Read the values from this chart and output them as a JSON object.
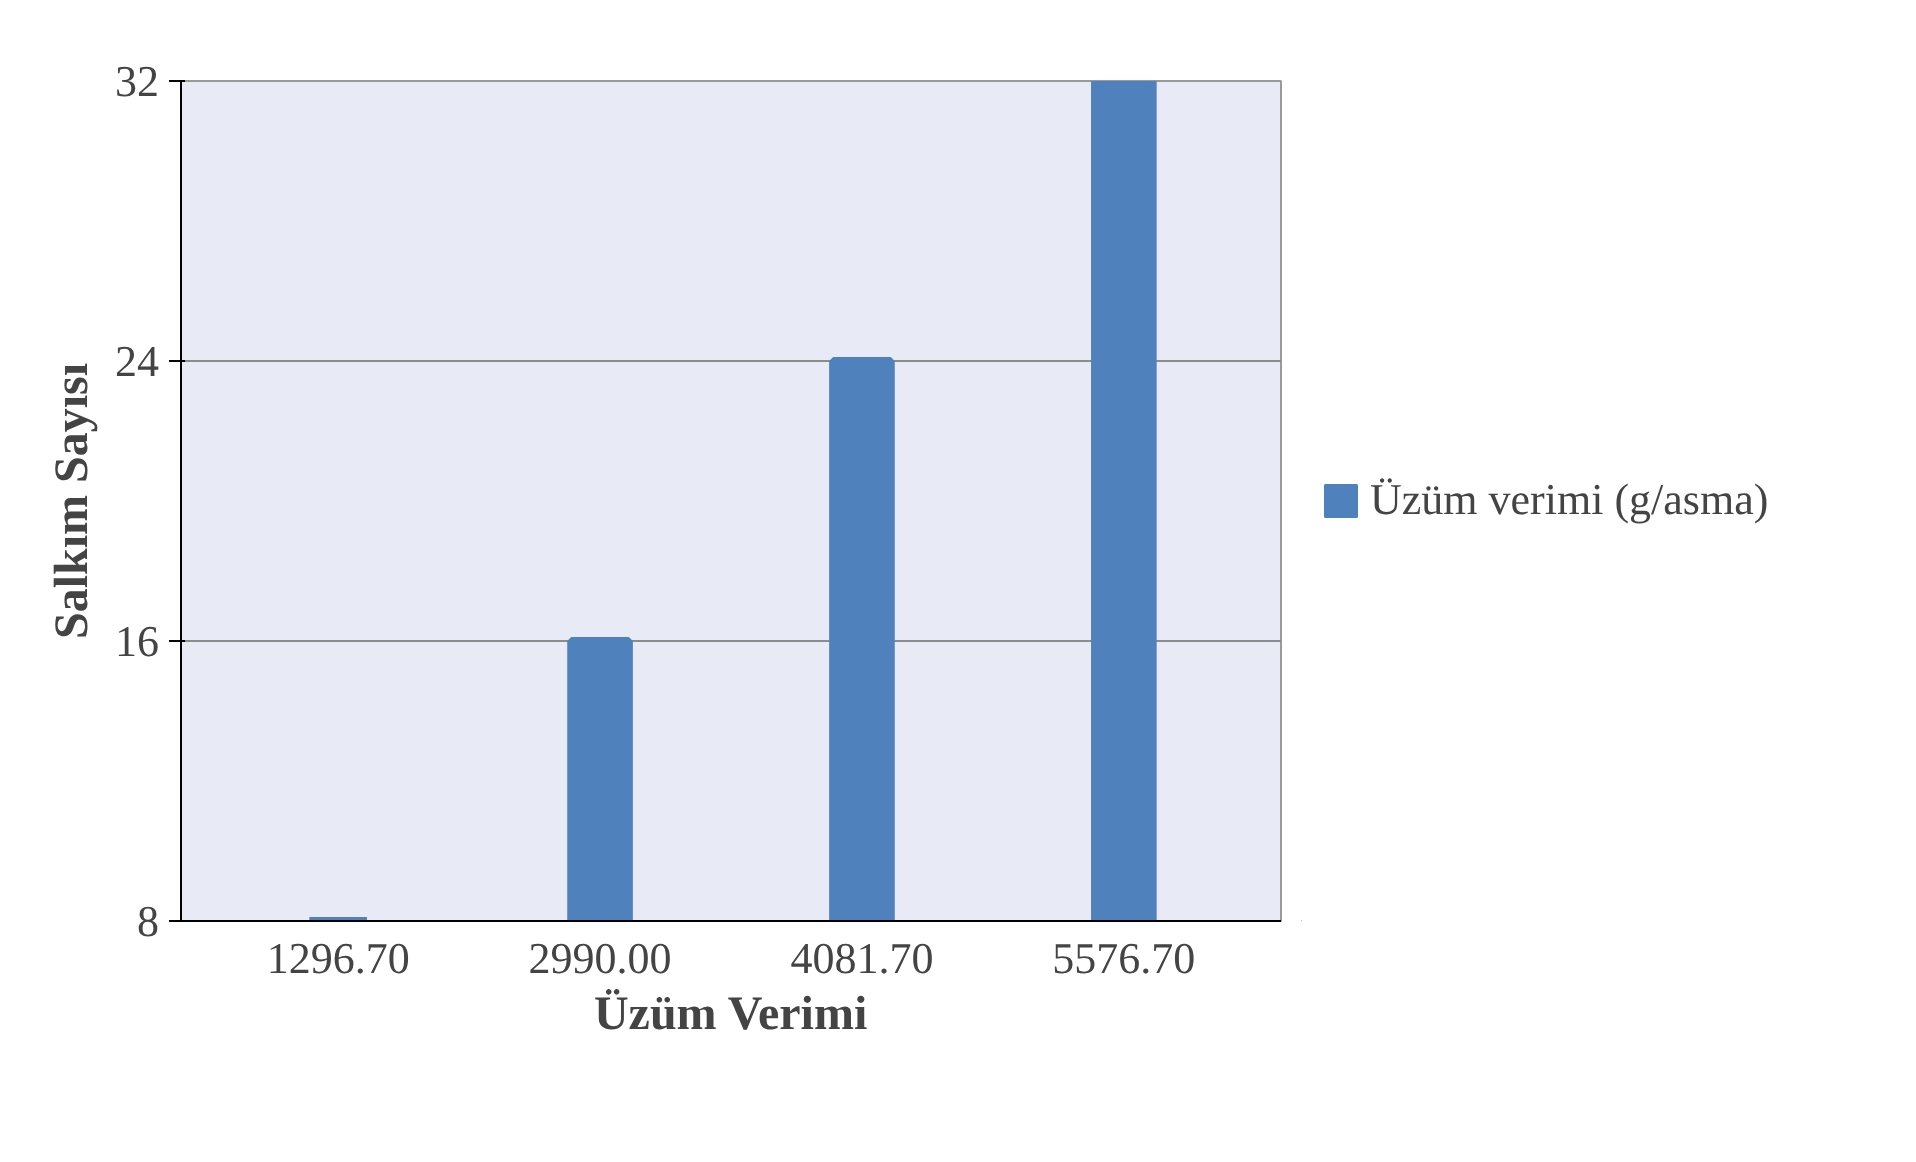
{
  "chart_data": {
    "type": "bar",
    "xlabel": "Üzüm Verimi",
    "ylabel": "Salkım Sayısı",
    "categories": [
      "1296.70",
      "2990.00",
      "4081.70",
      "5576.70"
    ],
    "series": [
      {
        "name": "Üzüm verimi (g/asma)",
        "color": "#4f81bd",
        "values": [
          8,
          16,
          24,
          32
        ]
      }
    ],
    "ylim": [
      8,
      32
    ],
    "yticks": [
      8,
      16,
      24,
      32
    ],
    "grid": "y",
    "legend": "right"
  }
}
